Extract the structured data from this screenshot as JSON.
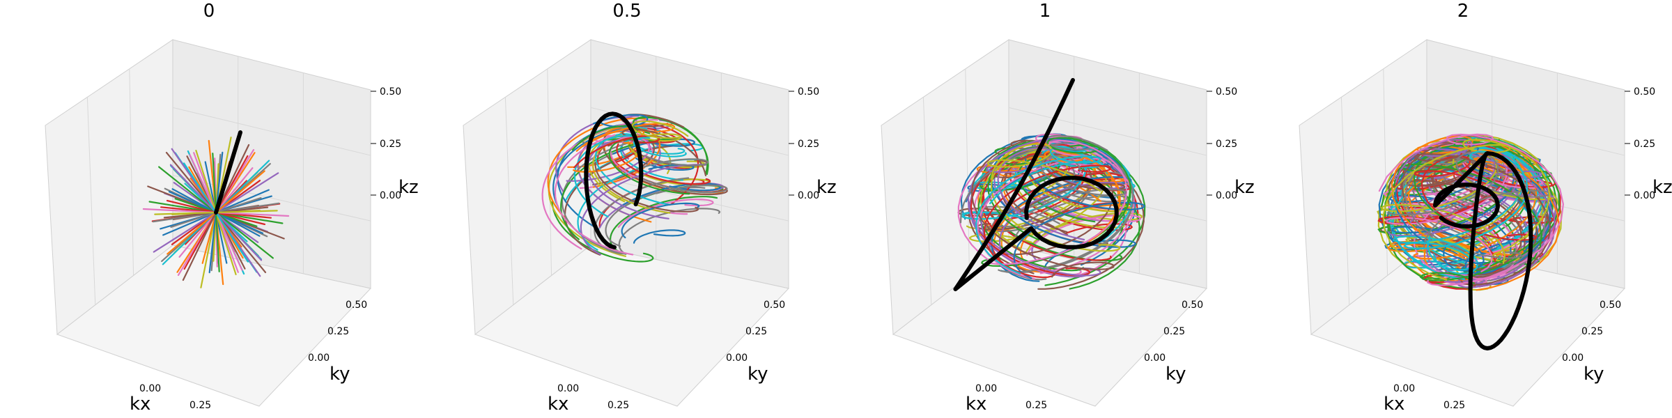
{
  "chart_data": [
    {
      "type": "line3d",
      "title": "0",
      "xlabel": "kx",
      "ylabel": "ky",
      "zlabel": "kz",
      "x_ticks": [
        "0.00",
        "0.25"
      ],
      "y_ticks": [
        "0.00",
        "0.25",
        "0.50"
      ],
      "z_ticks": [
        "0.00",
        "0.25",
        "0.50"
      ],
      "xlim": [
        -0.5,
        0.5
      ],
      "ylim": [
        -0.5,
        0.5
      ],
      "zlim": [
        -0.5,
        0.5
      ],
      "curve_style": "radial",
      "num_curves": 60,
      "highlight_color": "#000000",
      "grid": true
    },
    {
      "type": "line3d",
      "title": "0.5",
      "xlabel": "kx",
      "ylabel": "ky",
      "zlabel": "kz",
      "x_ticks": [
        "0.00",
        "0.25"
      ],
      "y_ticks": [
        "0.00",
        "0.25",
        "0.50"
      ],
      "z_ticks": [
        "0.00",
        "0.25",
        "0.50"
      ],
      "xlim": [
        -0.5,
        0.5
      ],
      "ylim": [
        -0.5,
        0.5
      ],
      "zlim": [
        -0.5,
        0.5
      ],
      "curve_style": "partial-spiral",
      "num_curves": 80,
      "highlight_color": "#000000",
      "grid": true
    },
    {
      "type": "line3d",
      "title": "1",
      "xlabel": "kx",
      "ylabel": "ky",
      "zlabel": "kz",
      "x_ticks": [
        "0.00",
        "0.25"
      ],
      "y_ticks": [
        "0.00",
        "0.25",
        "0.50"
      ],
      "z_ticks": [
        "0.00",
        "0.25",
        "0.50"
      ],
      "xlim": [
        -0.5,
        0.5
      ],
      "ylim": [
        -0.5,
        0.5
      ],
      "zlim": [
        -0.5,
        0.5
      ],
      "curve_style": "spiral",
      "num_curves": 90,
      "highlight_color": "#000000",
      "grid": true
    },
    {
      "type": "line3d",
      "title": "2",
      "xlabel": "kx",
      "ylabel": "ky",
      "zlabel": "kz",
      "x_ticks": [
        "0.00",
        "0.25"
      ],
      "y_ticks": [
        "0.00",
        "0.25",
        "0.50"
      ],
      "z_ticks": [
        "0.00",
        "0.25",
        "0.50"
      ],
      "xlim": [
        -0.5,
        0.5
      ],
      "ylim": [
        -0.5,
        0.5
      ],
      "zlim": [
        -0.5,
        0.5
      ],
      "curve_style": "dense-spiral",
      "num_curves": 100,
      "highlight_color": "#000000",
      "grid": true
    }
  ],
  "palette": [
    "#1f77b4",
    "#ff7f0e",
    "#2ca02c",
    "#d62728",
    "#9467bd",
    "#8c564b",
    "#e377c2",
    "#7f7f7f",
    "#bcbd22",
    "#17becf"
  ],
  "pane_colors": {
    "left": "#f2f2f2",
    "back": "#ebebeb",
    "floor": "#f5f5f5",
    "edge": "#d0d0d0",
    "grid": "#d8d8d8"
  }
}
